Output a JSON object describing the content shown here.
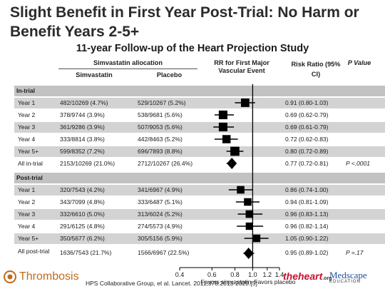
{
  "slide": {
    "title": "Slight Benefit in First Year Post-Trial: No Harm or Benefit Years 2-5+"
  },
  "chart_data": {
    "type": "forest",
    "title": "11-year Follow-up of the Heart Projection Study",
    "allocation_header": "Simvastatin allocation",
    "columns": {
      "simvastatin": "Simvastatin",
      "placebo": "Placebo",
      "rr_header": "RR for First Major Vascular Event",
      "risk_ratio": "Risk Ratio (95% CI)",
      "p_value": "P Value"
    },
    "axis": {
      "scale": "log",
      "ticks": [
        "0.4",
        "0.6",
        "0.8",
        "1.0",
        "1.2",
        "1.4"
      ],
      "tick_values": [
        0.4,
        0.6,
        0.8,
        1.0,
        1.2,
        1.4
      ],
      "xlim": [
        0.4,
        1.4
      ],
      "reference": 1.0,
      "left_label": "Favors simvastatin",
      "right_label": "Favors placebo"
    },
    "sections": [
      {
        "label": "In-trial",
        "rows": [
          {
            "label": "Year 1",
            "simvastatin": "482/10269 (4.7%)",
            "placebo": "529/10267 (5.2%)",
            "rr_text": "0.91 (0.80-1.03)",
            "p": "",
            "rr": 0.91,
            "lo": 0.8,
            "hi": 1.03,
            "marker": "square",
            "size": 0.8
          },
          {
            "label": "Year 2",
            "simvastatin": "378/9744 (3.9%)",
            "placebo": "538/9681 (5.6%)",
            "rr_text": "0.69 (0.62-0.79)",
            "p": "",
            "rr": 0.69,
            "lo": 0.62,
            "hi": 0.79,
            "marker": "square",
            "size": 0.85
          },
          {
            "label": "Year 3",
            "simvastatin": "361/9286 (3.9%)",
            "placebo": "507/9053 (5.6%)",
            "rr_text": "0.69 (0.61-0.79)",
            "p": "",
            "rr": 0.69,
            "lo": 0.61,
            "hi": 0.79,
            "marker": "square",
            "size": 0.85
          },
          {
            "label": "Year 4",
            "simvastatin": "333/8814 (3.8%)",
            "placebo": "442/8463 (5.2%)",
            "rr_text": "0.72 (0.62-0.83)",
            "p": "",
            "rr": 0.72,
            "lo": 0.62,
            "hi": 0.83,
            "marker": "square",
            "size": 0.75
          },
          {
            "label": "Year 5+",
            "simvastatin": "599/8352 (7.2%)",
            "placebo": "696/7893 (8.8%)",
            "rr_text": "0.80 (0.72-0.89)",
            "p": "",
            "rr": 0.8,
            "lo": 0.72,
            "hi": 0.89,
            "marker": "square",
            "size": 0.95
          },
          {
            "label": "All in-trial",
            "simvastatin": "2153/10269 (21.0%)",
            "placebo": "2712/10267 (26.4%)",
            "rr_text": "0.77 (0.72-0.81)",
            "p": "P <.0001",
            "rr": 0.77,
            "lo": 0.72,
            "hi": 0.81,
            "marker": "diamond"
          }
        ]
      },
      {
        "label": "Post-trial",
        "rows": [
          {
            "label": "Year 1",
            "simvastatin": "320/7543 (4.2%)",
            "placebo": "341/6967 (4.9%)",
            "rr_text": "0.86 (0.74-1.00)",
            "p": "",
            "rr": 0.86,
            "lo": 0.74,
            "hi": 1.0,
            "marker": "square",
            "size": 0.6
          },
          {
            "label": "Year 2",
            "simvastatin": "343/7099 (4.8%)",
            "placebo": "333/6487 (5.1%)",
            "rr_text": "0.94 (0.81-1.09)",
            "p": "",
            "rr": 0.94,
            "lo": 0.81,
            "hi": 1.09,
            "marker": "square",
            "size": 0.6
          },
          {
            "label": "Year 3",
            "simvastatin": "332/6610 (5.0%)",
            "placebo": "313/6024 (5.2%)",
            "rr_text": "0.96 (0.83-1.13)",
            "p": "",
            "rr": 0.96,
            "lo": 0.83,
            "hi": 1.13,
            "marker": "square",
            "size": 0.6
          },
          {
            "label": "Year 4",
            "simvastatin": "291/6125 (4.8%)",
            "placebo": "274/5573 (4.9%)",
            "rr_text": "0.96 (0.82-1.14)",
            "p": "",
            "rr": 0.96,
            "lo": 0.82,
            "hi": 1.14,
            "marker": "square",
            "size": 0.55
          },
          {
            "label": "Year 5+",
            "simvastatin": "350/5677 (6.2%)",
            "placebo": "305/5156 (5.9%)",
            "rr_text": "1.05 (0.90-1.22)",
            "p": "",
            "rr": 1.05,
            "lo": 0.9,
            "hi": 1.22,
            "marker": "square",
            "size": 0.6
          },
          {
            "label": "All post-trial",
            "simvastatin": "1636/7543 (21.7%)",
            "placebo": "1566/6967 (22.5%)",
            "rr_text": "0.95 (0.89-1.02)",
            "p": "P =.17",
            "rr": 0.95,
            "lo": 0.89,
            "hi": 1.02,
            "marker": "diamond"
          }
        ]
      }
    ]
  },
  "footer": {
    "logo_text": "Thrombosis",
    "citation": "HPS Collaborative Group, et al. Lancet. 2011;378:2013-2020.[5]",
    "heart_logo": "theheart",
    "heart_logo_suffix": ".org",
    "medscape_logo": "Medscape",
    "medscape_sub": "EDUCATION"
  },
  "colors": {
    "row_shade": "#d3d3d3",
    "section_shade": "#c2c2c2",
    "marker": "#000000",
    "thrombosis_brand": "#c06a1c",
    "heart_brand": "#c8102e",
    "medscape_brand": "#1f4e9c"
  }
}
